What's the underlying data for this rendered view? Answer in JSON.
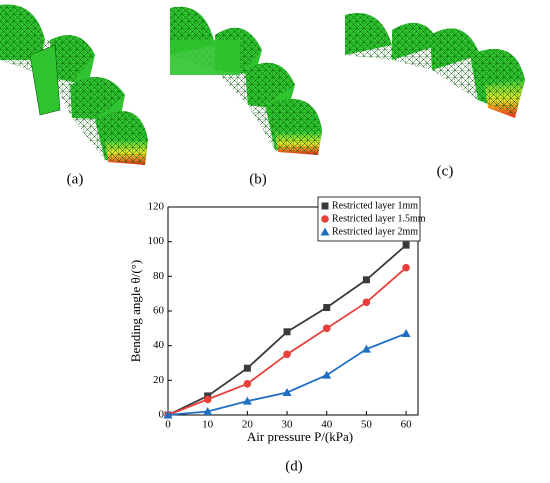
{
  "captions": [
    "(a)",
    "(b)",
    "(c)",
    "(d)"
  ],
  "chart_data": {
    "type": "line",
    "x_label": "Air pressure P/(kPa)",
    "y_label": "Bending angle θ/(°)",
    "x": [
      0,
      10,
      20,
      30,
      40,
      50,
      60
    ],
    "xlim": [
      0,
      63
    ],
    "xticks": [
      0,
      10,
      20,
      30,
      40,
      50,
      60
    ],
    "ylim": [
      0,
      120
    ],
    "yticks": [
      0,
      20,
      40,
      60,
      80,
      100,
      120
    ],
    "grid": false,
    "legend": "top-right",
    "series": [
      {
        "name": "Restricted layer 1mm",
        "color": "#3a3a3a",
        "marker": "square",
        "values": [
          0,
          11,
          27,
          48,
          62,
          78,
          98
        ]
      },
      {
        "name": "Restricted layer 1.5mm",
        "color": "#e8403a",
        "marker": "circle",
        "values": [
          0,
          9,
          18,
          35,
          50,
          65,
          85
        ]
      },
      {
        "name": "Restricted layer 2mm",
        "color": "#1f6fc5",
        "marker": "triangle",
        "values": [
          0,
          2,
          8,
          13,
          23,
          38,
          47
        ]
      }
    ]
  }
}
